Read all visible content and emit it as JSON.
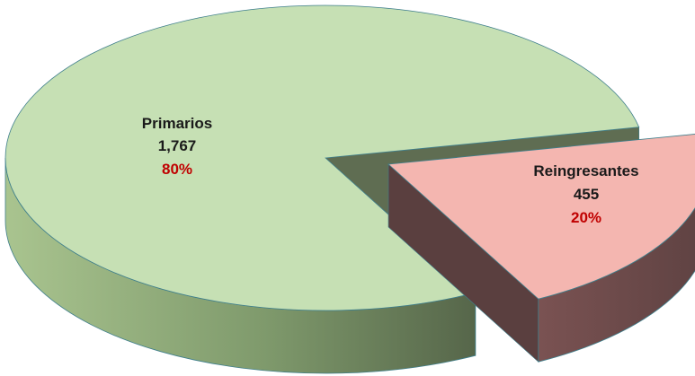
{
  "chart_data": {
    "type": "pie",
    "style": "3d-exploded",
    "slices": [
      {
        "label": "Primarios",
        "value": 1767,
        "value_text": "1,767",
        "percent": 80,
        "percent_text": "80%",
        "color": "#c6e0b4",
        "side_color": "#7f9a6c",
        "exploded": false
      },
      {
        "label": "Reingresantes",
        "value": 455,
        "value_text": "455",
        "percent": 20,
        "percent_text": "20%",
        "color": "#f4b6b0",
        "side_color": "#6b4a4a",
        "exploded": true
      }
    ],
    "percent_color": "#c00000",
    "legend": "none"
  }
}
